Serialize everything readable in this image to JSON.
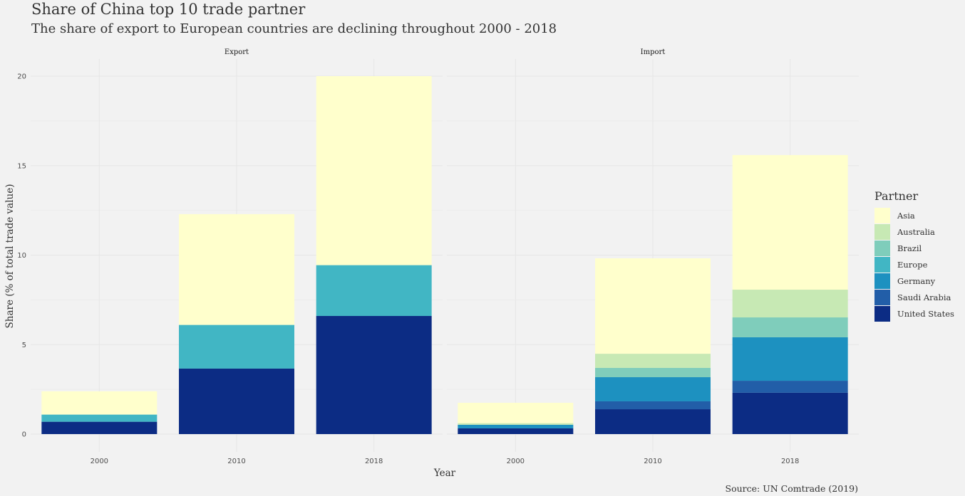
{
  "chart_data": {
    "type": "bar",
    "stacked": true,
    "title": "Share of China top 10 trade partner",
    "subtitle": "The share of export to European countries are declining throughout 2000 - 2018",
    "xlabel": "Year",
    "ylabel": "Share (% of total trade value)",
    "caption": "Source: UN Comtrade (2019)",
    "ylim": [
      0,
      20
    ],
    "yticks": [
      0,
      5,
      10,
      15,
      20
    ],
    "grid": true,
    "legend": {
      "title": "Partner",
      "position": "right",
      "entries": [
        {
          "name": "Asia",
          "color": "#ffffcc"
        },
        {
          "name": "Australia",
          "color": "#c7e9b4"
        },
        {
          "name": "Brazil",
          "color": "#7fcdbb"
        },
        {
          "name": "Europe",
          "color": "#41b6c4"
        },
        {
          "name": "Germany",
          "color": "#1d91c0"
        },
        {
          "name": "Saudi Arabia",
          "color": "#225ea8"
        },
        {
          "name": "United States",
          "color": "#0c2c84"
        }
      ]
    },
    "categories": [
      "2000",
      "2010",
      "2018"
    ],
    "facets": [
      {
        "name": "Export",
        "series": [
          {
            "name": "United States",
            "values": [
              0.69,
              3.66,
              6.6
            ]
          },
          {
            "name": "Europe",
            "values": [
              0.4,
              2.44,
              2.84
            ]
          },
          {
            "name": "Asia",
            "values": [
              1.3,
              6.19,
              10.56
            ]
          }
        ]
      },
      {
        "name": "Import",
        "series": [
          {
            "name": "United States",
            "values": [
              0.32,
              1.39,
              2.31
            ]
          },
          {
            "name": "Saudi Arabia",
            "values": [
              0.0,
              0.44,
              0.67
            ]
          },
          {
            "name": "Germany",
            "values": [
              0.2,
              1.35,
              2.43
            ]
          },
          {
            "name": "Brazil",
            "values": [
              0.0,
              0.52,
              1.11
            ]
          },
          {
            "name": "Australia",
            "values": [
              0.09,
              0.79,
              1.55
            ]
          },
          {
            "name": "Asia",
            "values": [
              1.14,
              5.33,
              7.52
            ]
          }
        ]
      }
    ]
  }
}
